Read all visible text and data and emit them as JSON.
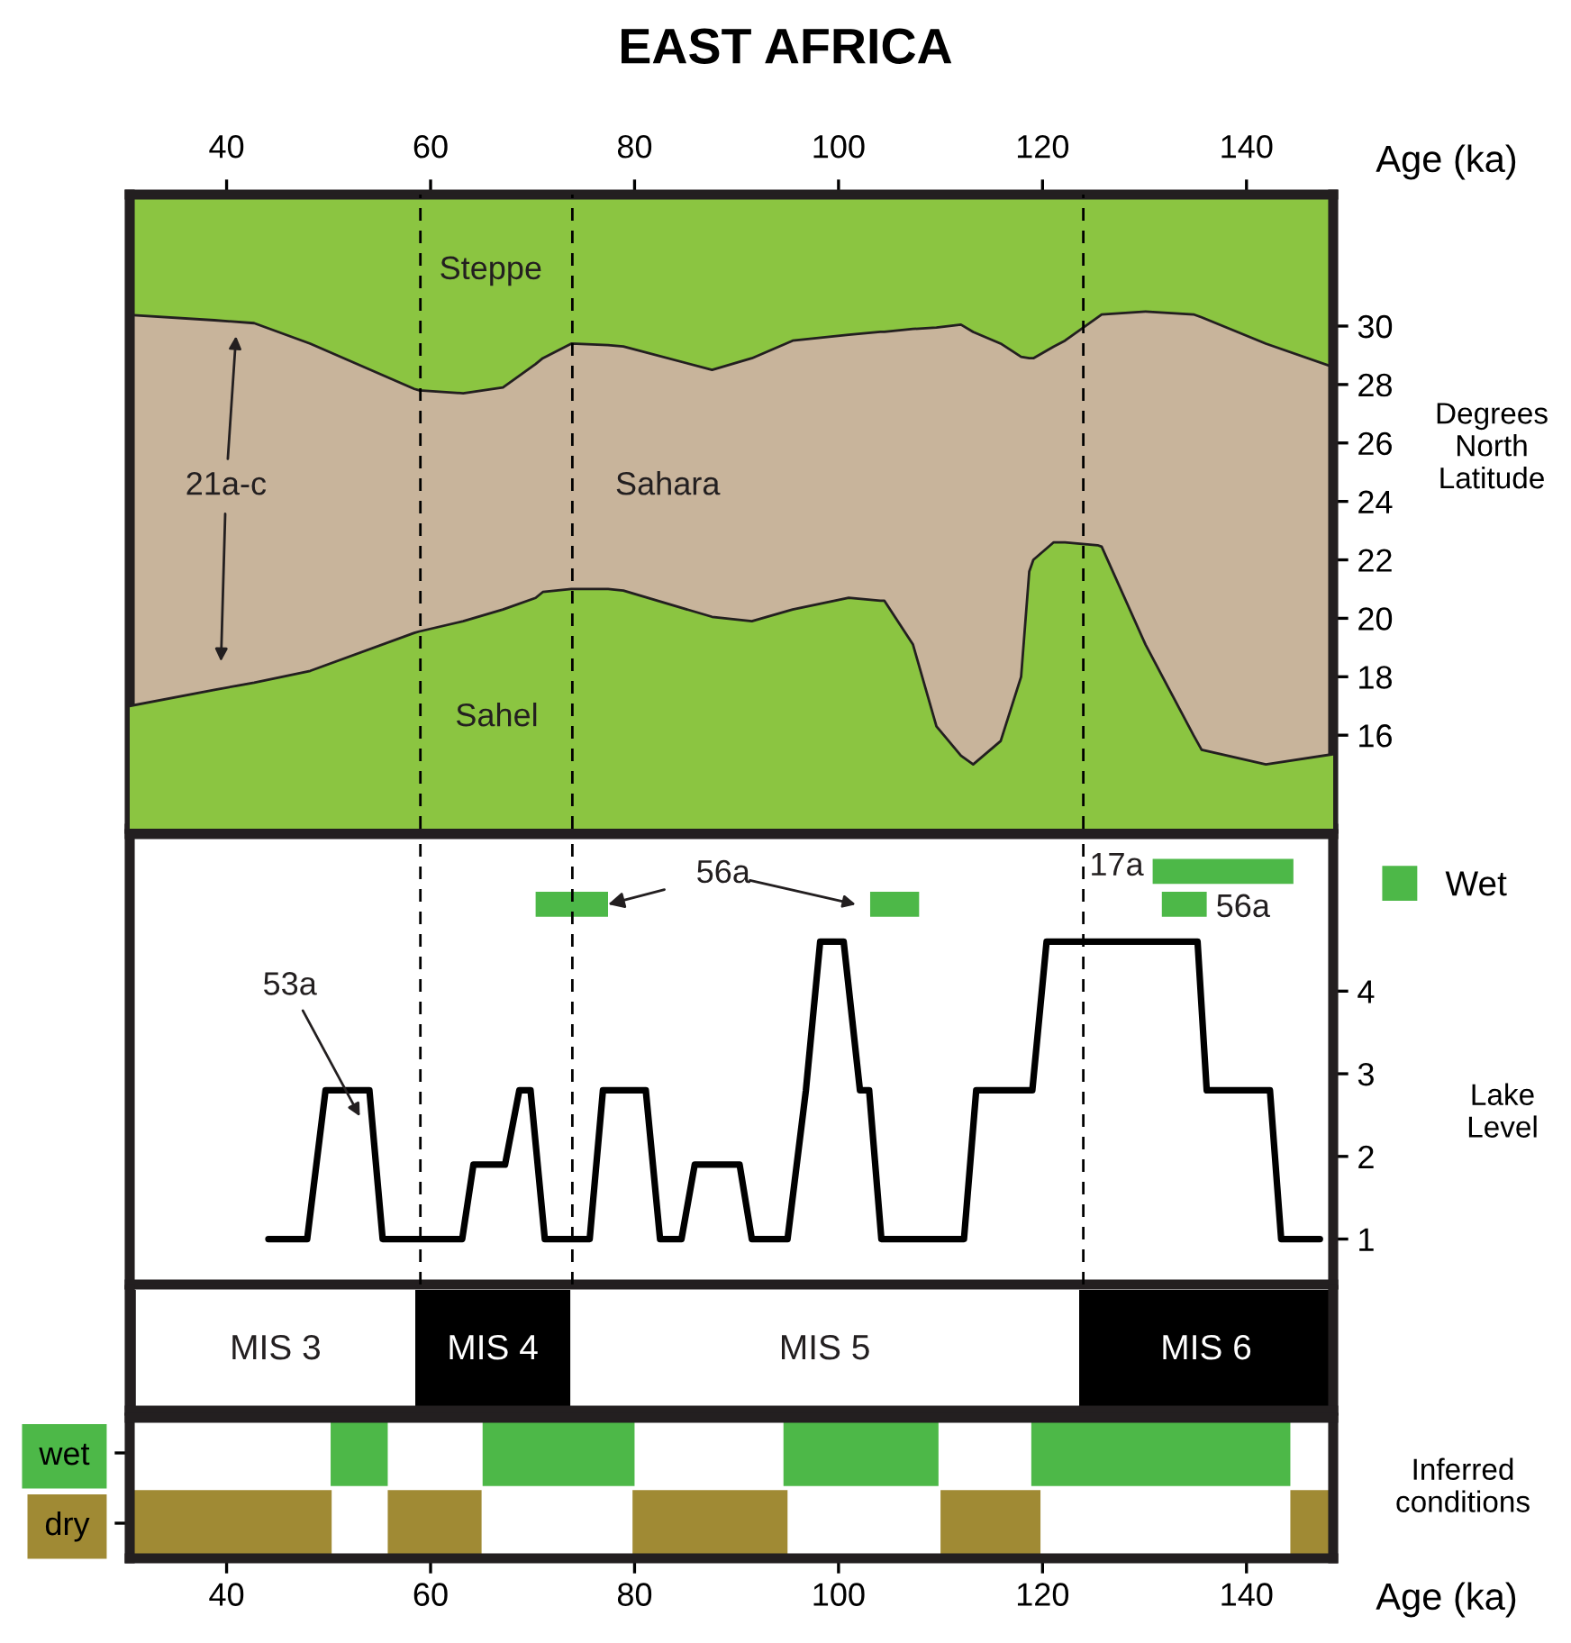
{
  "chart_data": [
    {
      "type": "area",
      "title": "EAST AFRICA",
      "xlabel": "Age (ka)",
      "ylabel": "Degrees North Latitude",
      "xlim": [
        30.5,
        148.5
      ],
      "xticks": [
        40,
        60,
        80,
        100,
        120,
        140
      ],
      "ylim": [
        12.8,
        34.5
      ],
      "yticks": [
        16,
        18,
        20,
        22,
        24,
        26,
        28,
        30
      ],
      "x": [
        30.5,
        38.8,
        42.7,
        48.2,
        58.4,
        58.9,
        63.2,
        67.1,
        70.3,
        71,
        73.8,
        77.4,
        78.9,
        87.6,
        91.5,
        95.5,
        101,
        104.1,
        104.5,
        107.3,
        109.6,
        112,
        113.2,
        115.9,
        117.9,
        118.7,
        119.1,
        121.1,
        122.2,
        125.4,
        125.8,
        130.1,
        134.8,
        135.6,
        141.9,
        148.5
      ],
      "series": [
        {
          "name": "Sahara",
          "color": "#c8b49b",
          "values": [
            30.38,
            30.2,
            30.1,
            29.4,
            27.85,
            27.8,
            27.7,
            27.9,
            28.7,
            28.9,
            29.4,
            29.35,
            29.3,
            28.5,
            28.9,
            29.5,
            29.7,
            29.8,
            29.8,
            29.9,
            29.95,
            30.05,
            29.8,
            29.4,
            28.95,
            28.9,
            28.9,
            29.3,
            29.5,
            30.3,
            30.4,
            30.5,
            30.4,
            30.3,
            29.4,
            28.6
          ]
        },
        {
          "name": "Sahel",
          "color": "#8bc541",
          "values": [
            17.0,
            17.55,
            17.8,
            18.2,
            19.5,
            19.55,
            19.9,
            20.3,
            20.7,
            20.9,
            21.0,
            21.0,
            20.95,
            20.05,
            19.9,
            20.3,
            20.7,
            20.6,
            20.6,
            19.1,
            16.3,
            15.3,
            15.0,
            15.8,
            18.0,
            21.6,
            22.0,
            22.6,
            22.6,
            22.5,
            22.45,
            19.1,
            16.0,
            15.5,
            15.0,
            15.35
          ]
        }
      ],
      "ref_lines": [
        {
          "axis": "x",
          "value": 59.0,
          "color": "#000000",
          "line_style": "dashed"
        },
        {
          "axis": "x",
          "value": 73.9,
          "color": "#000000",
          "line_style": "dashed"
        },
        {
          "axis": "x",
          "value": 124.0,
          "color": "#000000",
          "line_style": "dashed"
        }
      ],
      "annotations": [
        "Steppe",
        "21a-c"
      ]
    },
    {
      "type": "line",
      "ylabel": "Lake Level",
      "xlim": [
        30.5,
        148.5
      ],
      "ylim": [
        0.45,
        5.9
      ],
      "yticks": [
        1,
        2,
        3,
        4
      ],
      "tick_labels": "y",
      "series": [
        {
          "color": "#000000",
          "x": [
            44.1,
            47.9,
            49.7,
            54,
            55.3,
            63.1,
            64.2,
            67.3,
            68.7,
            69.8,
            71.2,
            75.6,
            76.9,
            81.1,
            82.5,
            84.6,
            85.9,
            90.3,
            91.5,
            95,
            96.8,
            98.2,
            100.5,
            102.1,
            103,
            104.2,
            112.3,
            113.5,
            119,
            120.4,
            135.2,
            136.1,
            142.3,
            143.4,
            147.2
          ],
          "values": [
            1,
            1,
            2.8,
            2.8,
            1,
            1,
            1.9,
            1.9,
            2.8,
            2.8,
            1,
            1,
            2.8,
            2.8,
            1,
            1,
            1.9,
            1.9,
            1,
            1,
            2.8,
            4.6,
            4.6,
            2.8,
            2.8,
            1,
            1,
            2.8,
            2.8,
            4.6,
            4.6,
            2.8,
            2.8,
            1,
            1
          ]
        },
        {
          "name": "Wet",
          "color": "#4db848",
          "x": [
            70.3,
            77.4,
            null,
            103.1,
            107.9,
            null,
            130.8,
            144.6,
            null,
            131.7,
            136.1
          ],
          "values": [
            5.05,
            5.05,
            null,
            5.05,
            5.05,
            null,
            5.45,
            5.45,
            null,
            5.05,
            5.05
          ]
        }
      ],
      "ref_lines": [
        {
          "axis": "x",
          "value": 59.0,
          "color": "#000000",
          "line_style": "dashed"
        },
        {
          "axis": "x",
          "value": 73.9,
          "color": "#000000",
          "line_style": "dashed"
        },
        {
          "axis": "x",
          "value": 124.0,
          "color": "#000000",
          "line_style": "dashed"
        }
      ],
      "annotations": [
        "53a",
        {
          "text": "56a",
          "x": 77.4,
          "y": 5.05
        },
        "17a",
        "56a"
      ],
      "legend": "right",
      "marker": "none"
    },
    {
      "type": "bar",
      "orientation": "horizontal",
      "categories": [
        null
      ],
      "xlim": [
        30.5,
        148.5
      ],
      "tick_labels": false,
      "series": [
        {
          "name": "MIS 3",
          "color": "#ffffff",
          "values": [
            27.4
          ],
          "base": [
            31.1
          ]
        },
        {
          "name": "MIS 4",
          "color": "#000000",
          "values": [
            15.2
          ],
          "base": [
            58.5
          ]
        },
        {
          "name": "MIS 5",
          "color": "#ffffff",
          "values": [
            49.9
          ],
          "base": [
            73.7
          ]
        },
        {
          "name": "MIS 6",
          "color": "#000000",
          "values": [
            24.9
          ],
          "base": [
            123.6
          ]
        }
      ]
    },
    {
      "type": "bar",
      "orientation": "horizontal",
      "categories": [
        "wet",
        "dry"
      ],
      "xlabel": "Age (ka)",
      "ylabel": "Inferred conditions",
      "xlim": [
        30.5,
        148.5
      ],
      "xticks": [
        40,
        60,
        80,
        100,
        120,
        140
      ],
      "series": [
        {
          "color": "#4db848",
          "values": [
            5.6,
            null
          ],
          "base": [
            50.2,
            null
          ]
        },
        {
          "color": "#4db848",
          "values": [
            14.9,
            null
          ],
          "base": [
            65.1,
            null
          ]
        },
        {
          "color": "#4db848",
          "values": [
            15.2,
            null
          ],
          "base": [
            94.6,
            null
          ]
        },
        {
          "color": "#4db848",
          "values": [
            25.4,
            null
          ],
          "base": [
            118.9,
            null
          ]
        },
        {
          "color": "#a08a34",
          "values": [
            null,
            19.8
          ],
          "base": [
            null,
            30.5
          ]
        },
        {
          "color": "#a08a34",
          "values": [
            null,
            9.2
          ],
          "base": [
            null,
            55.8
          ]
        },
        {
          "color": "#a08a34",
          "values": [
            null,
            15.2
          ],
          "base": [
            null,
            79.8
          ]
        },
        {
          "color": "#a08a34",
          "values": [
            null,
            9.8
          ],
          "base": [
            null,
            110.0
          ]
        },
        {
          "color": "#a08a34",
          "values": [
            null,
            4.2
          ],
          "base": [
            null,
            144.3
          ]
        }
      ]
    }
  ]
}
